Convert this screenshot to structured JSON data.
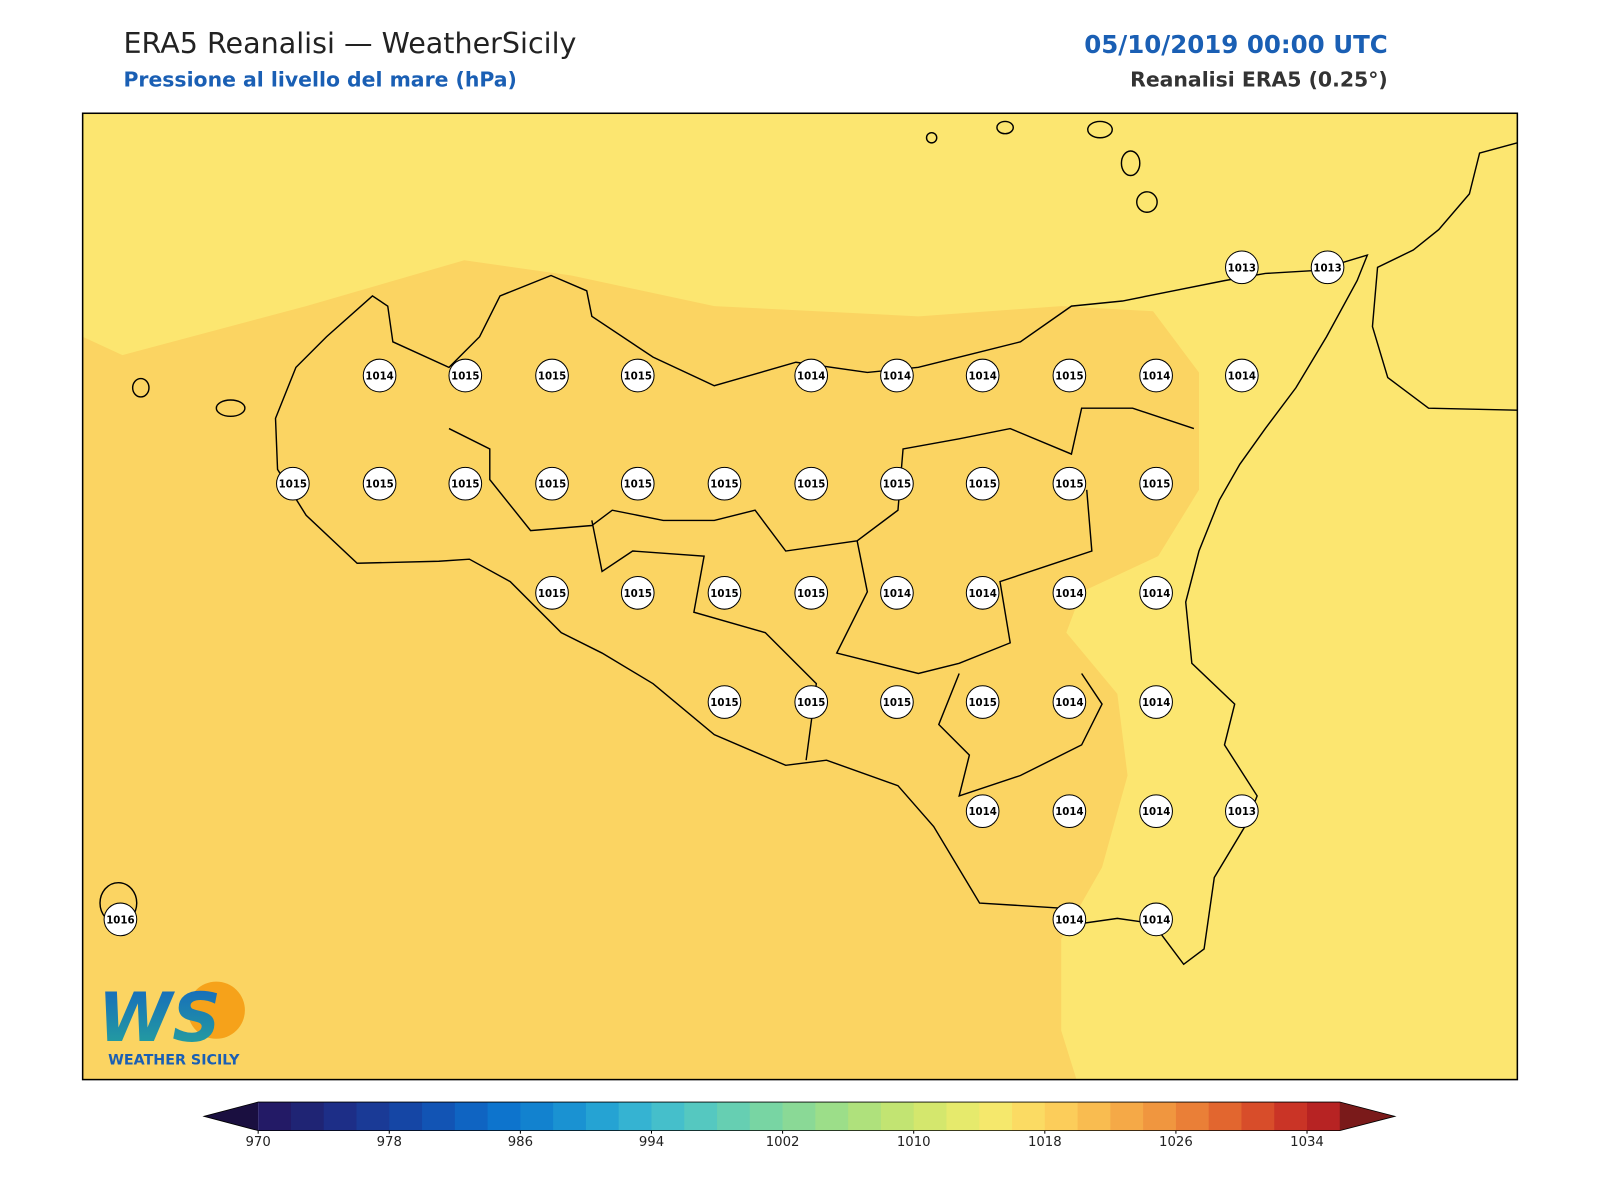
{
  "header": {
    "title": "ERA5 Reanalisi — WeatherSicily",
    "subtitle": "Pressione al livello del mare (hPa)",
    "date": "05/10/2019 00:00 UTC",
    "source": "Reanalisi ERA5 (0.25°)"
  },
  "stations": [
    1013,
    1013,
    1014,
    1015,
    1015,
    1015,
    1014,
    1014,
    1014,
    1015,
    1014,
    1014,
    1015,
    1015,
    1015,
    1015,
    1015,
    1015,
    1015,
    1015,
    1015,
    1015,
    1015,
    1015,
    1015,
    1015,
    1015,
    1014,
    1014,
    1014,
    1014,
    1015,
    1015,
    1015,
    1015,
    1014,
    1014,
    1014,
    1014,
    1014,
    1013,
    1016,
    1014,
    1014
  ],
  "colorbar": {
    "ticks": [
      970,
      978,
      986,
      994,
      1002,
      1010,
      1018,
      1026,
      1034
    ],
    "colors": [
      "#231a66",
      "#1f2474",
      "#1d2e87",
      "#1a3a96",
      "#1546a5",
      "#1254b4",
      "#0f64c2",
      "#0d74cd",
      "#1282cf",
      "#1a92d2",
      "#25a3d3",
      "#35b3d2",
      "#45bfcb",
      "#55c8c0",
      "#66cfb2",
      "#78d5a3",
      "#8ad996",
      "#9cde89",
      "#afe17c",
      "#c2e472",
      "#d4e76d",
      "#e6ea6c",
      "#f5e86c",
      "#fbdb63",
      "#fccd5a",
      "#f9bc50",
      "#f5a947",
      "#f0963f",
      "#ea7f37",
      "#e2662f",
      "#d84d2a",
      "#ca3426",
      "#b72323"
    ],
    "under": "#1a0f40",
    "over": "#7a1a1a"
  },
  "logo": {
    "mark": "WS",
    "name": "WEATHER SICILY"
  }
}
